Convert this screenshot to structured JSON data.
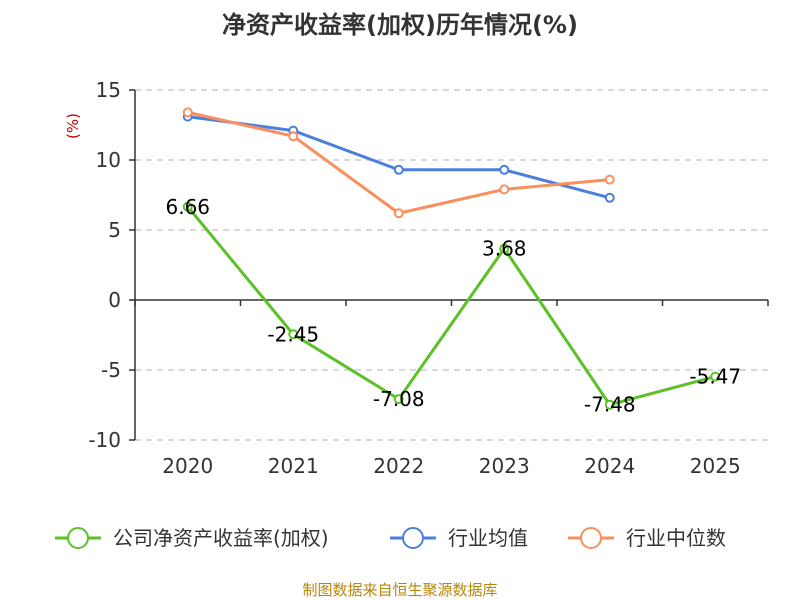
{
  "chart_data": {
    "type": "line",
    "title": "净资产收益率(加权)历年情况(%)",
    "ylabel": "(%)",
    "categories": [
      "2020",
      "2021",
      "2022",
      "2023",
      "2024",
      "2025"
    ],
    "ylim": [
      -10,
      15
    ],
    "yticks": [
      "15",
      "10",
      "5",
      "0",
      "-5",
      "-10"
    ],
    "grid": true,
    "legend_position": "bottom",
    "series": [
      {
        "name": "公司净资产收益率(加权)",
        "color": "#5cc127",
        "values": [
          6.66,
          -2.45,
          -7.08,
          3.68,
          -7.48,
          -5.47
        ],
        "labels": [
          "6.66",
          "-2.45",
          "-7.08",
          "3.68",
          "-7.48",
          "-5.47"
        ]
      },
      {
        "name": "行业均值",
        "color": "#4a7fdc",
        "values": [
          13.1,
          12.1,
          9.3,
          9.3,
          7.3,
          null
        ]
      },
      {
        "name": "行业中位数",
        "color": "#f98f5c",
        "values": [
          13.4,
          11.7,
          6.2,
          7.9,
          8.6,
          null
        ]
      }
    ]
  },
  "footer": "制图数据来自恒生聚源数据库"
}
